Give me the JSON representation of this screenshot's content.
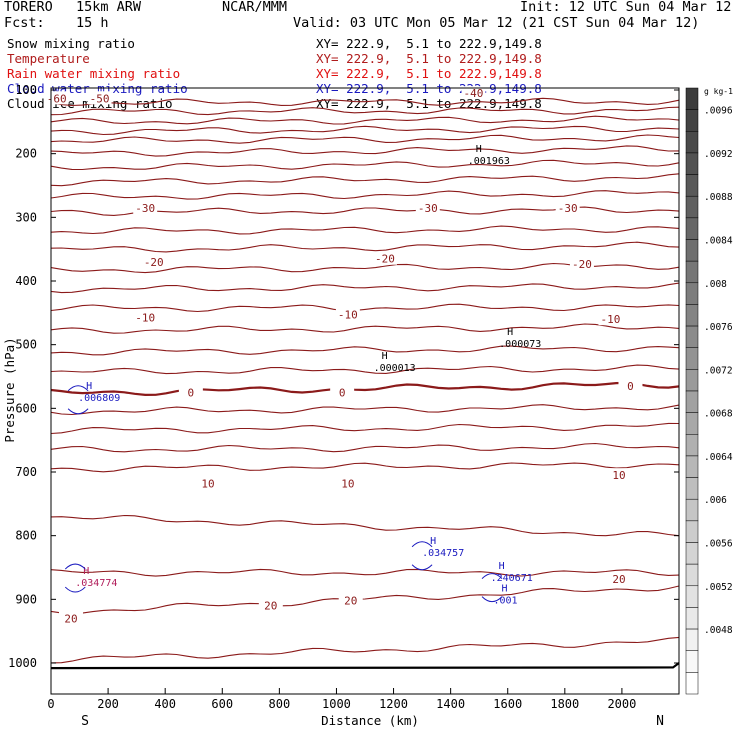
{
  "header": {
    "model": "TORERO",
    "resolution": "15km ARW",
    "org": "NCAR/MMM",
    "init": "Init: 12 UTC Sun 04 Mar 12",
    "fcst_label": "Fcst:",
    "fcst_value": "15 h",
    "valid": "Valid: 03 UTC Mon 05 Mar 12 (21 CST Sun 04 Mar 12)"
  },
  "legend": [
    {
      "label": "Snow mixing ratio",
      "xy": "XY= 222.9,  5.1 to 222.9,149.8",
      "color": "#000000"
    },
    {
      "label": "Temperature",
      "xy": "XY= 222.9,  5.1 to 222.9,149.8",
      "color": "#b01c1c"
    },
    {
      "label": "Rain water mixing ratio",
      "xy": "XY= 222.9,  5.1 to 222.9,149.8",
      "color": "#e01010"
    },
    {
      "label": "Cloud water mixing ratio",
      "xy": "XY= 222.9,  5.1 to 222.9,149.8",
      "color": "#1a1abf"
    },
    {
      "label": "Cloud ice mixing ratio",
      "xy": "XY= 222.9,  5.1 to 222.9,149.8",
      "color": "#000000"
    }
  ],
  "chart_data": {
    "type": "contour",
    "xlabel": "Distance (km)",
    "ylabel": "Pressure (hPa)",
    "xlim": [
      0,
      2200
    ],
    "ylim": [
      1050,
      100
    ],
    "x_ticks": [
      0,
      200,
      400,
      600,
      800,
      1000,
      1200,
      1400,
      1600,
      1800,
      2000
    ],
    "y_ticks": [
      100,
      200,
      300,
      400,
      500,
      600,
      700,
      800,
      900,
      1000
    ],
    "y_tick_labels": [
      "100",
      "200",
      "300",
      "400",
      "500",
      "600",
      "700",
      "800",
      "900",
      "1000"
    ],
    "x_ends": {
      "left": "S",
      "right": "N"
    },
    "temperature_isotherms": [
      {
        "p_left": 120,
        "p_right": 118
      },
      {
        "p_left": 134,
        "p_right": 132
      },
      {
        "p_left": 150,
        "p_right": 146
      },
      {
        "p_left": 165,
        "p_right": 160
      },
      {
        "p_left": 180,
        "p_right": 175
      },
      {
        "p_left": 200,
        "p_right": 192
      },
      {
        "p_left": 222,
        "p_right": 214
      },
      {
        "p_left": 245,
        "p_right": 237
      },
      {
        "p_left": 268,
        "p_right": 262
      },
      {
        "p_left": 292,
        "p_right": 288
      },
      {
        "p_left": 322,
        "p_right": 318
      },
      {
        "p_left": 351,
        "p_right": 344
      },
      {
        "p_left": 383,
        "p_right": 376
      },
      {
        "p_left": 413,
        "p_right": 408
      },
      {
        "p_left": 443,
        "p_right": 441
      },
      {
        "p_left": 478,
        "p_right": 472
      },
      {
        "p_left": 512,
        "p_right": 505
      },
      {
        "p_left": 543,
        "p_right": 537
      },
      {
        "p_left": 576,
        "p_right": 562,
        "bold": true
      },
      {
        "p_left": 605,
        "p_right": 598
      },
      {
        "p_left": 635,
        "p_right": 628
      },
      {
        "p_left": 665,
        "p_right": 660
      },
      {
        "p_left": 695,
        "p_right": 688
      },
      {
        "p_left": 770,
        "p_right": 800
      },
      {
        "p_left": 858,
        "p_right": 858
      },
      {
        "p_left": 920,
        "p_right": 880
      },
      {
        "p_left": 995,
        "p_right": 965
      }
    ],
    "contour_labels": [
      {
        "text": "-60",
        "x": 20,
        "p": 113
      },
      {
        "text": "-50",
        "x": 170,
        "p": 113
      },
      {
        "text": "-40",
        "x": 1480,
        "p": 105
      },
      {
        "text": "-30",
        "x": 330,
        "p": 285
      },
      {
        "text": "-30",
        "x": 1320,
        "p": 285
      },
      {
        "text": "-30",
        "x": 1810,
        "p": 285
      },
      {
        "text": "-20",
        "x": 360,
        "p": 370
      },
      {
        "text": "-20",
        "x": 1170,
        "p": 365
      },
      {
        "text": "-20",
        "x": 1860,
        "p": 373
      },
      {
        "text": "-10",
        "x": 330,
        "p": 457
      },
      {
        "text": "-10",
        "x": 1040,
        "p": 453
      },
      {
        "text": "-10",
        "x": 1960,
        "p": 460
      },
      {
        "text": "0",
        "x": 490,
        "p": 575
      },
      {
        "text": "0",
        "x": 1020,
        "p": 575
      },
      {
        "text": "0",
        "x": 2030,
        "p": 565
      },
      {
        "text": "10",
        "x": 550,
        "p": 718
      },
      {
        "text": "10",
        "x": 1040,
        "p": 718
      },
      {
        "text": "10",
        "x": 1990,
        "p": 705
      },
      {
        "text": "20",
        "x": 70,
        "p": 930
      },
      {
        "text": "20",
        "x": 770,
        "p": 910
      },
      {
        "text": "20",
        "x": 1050,
        "p": 902
      },
      {
        "text": "20",
        "x": 1990,
        "p": 868
      }
    ],
    "extrema": [
      {
        "type": "H",
        "value": ".001963",
        "x": 1460,
        "p": 210,
        "field": "snow"
      },
      {
        "type": "H",
        "value": ".000073",
        "x": 1570,
        "p": 497,
        "field": "snow"
      },
      {
        "type": "H",
        "value": ".000013",
        "x": 1130,
        "p": 535,
        "field": "snow"
      },
      {
        "type": "H",
        "value": ".006809",
        "x": 95,
        "p": 582,
        "field": "cloud_water"
      },
      {
        "type": "H",
        "value": ".034757",
        "x": 1300,
        "p": 826,
        "field": "cloud_water"
      },
      {
        "type": "H",
        "value": ".240671",
        "x": 1540,
        "p": 865,
        "field": "cloud_water"
      },
      {
        "type": "H",
        "value": ".001",
        "x": 1550,
        "p": 900,
        "field": "cloud_water"
      },
      {
        "type": "H",
        "value": ".034774",
        "x": 85,
        "p": 873,
        "field": "rain"
      }
    ],
    "colorbar": {
      "unit": "g kg-1",
      "labels": [
        ".0096",
        ".0092",
        ".0088",
        ".0084",
        ".008",
        ".0076",
        ".0072",
        ".0068",
        ".0064",
        ".006",
        ".0056",
        ".0052",
        ".0048"
      ]
    }
  }
}
